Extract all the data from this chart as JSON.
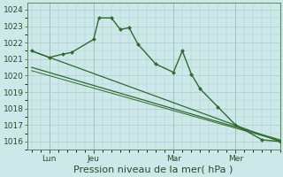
{
  "background_color": "#cce8e8",
  "grid_color": "#aacccc",
  "line_color": "#2d6b2d",
  "marker_color": "#2d6b2d",
  "xlabel": "Pression niveau de la mer( hPa )",
  "xlabel_fontsize": 8,
  "ylabel_fontsize": 6.5,
  "tick_fontsize": 6.5,
  "ylim": [
    1015.5,
    1024.4
  ],
  "yticks": [
    1016,
    1017,
    1018,
    1019,
    1020,
    1021,
    1022,
    1023,
    1024
  ],
  "x_tick_labels": [
    "Lun",
    "Jeu",
    "Mar",
    "Mer"
  ],
  "x_tick_positions": [
    2,
    7,
    16,
    23
  ],
  "x_vlines": [
    2,
    7,
    16,
    23
  ],
  "xlim": [
    -0.5,
    28
  ],
  "series": [
    {
      "x": [
        0,
        2,
        3.5,
        4.5,
        7,
        7.6,
        9,
        10,
        11,
        12,
        14,
        16,
        17,
        18,
        19,
        21,
        23,
        26,
        28
      ],
      "y": [
        1021.5,
        1021.1,
        1021.3,
        1021.4,
        1022.2,
        1023.5,
        1023.5,
        1022.8,
        1022.9,
        1021.9,
        1020.7,
        1020.2,
        1021.5,
        1020.1,
        1019.2,
        1018.1,
        1017.0,
        1016.1,
        1016.0
      ],
      "marker": "D",
      "markersize": 2.0,
      "linewidth": 1.0,
      "has_marker": true
    },
    {
      "x": [
        0,
        28
      ],
      "y": [
        1021.5,
        1016.0
      ],
      "marker": null,
      "markersize": 0,
      "linewidth": 0.9,
      "has_marker": false
    },
    {
      "x": [
        0,
        28
      ],
      "y": [
        1020.5,
        1016.1
      ],
      "marker": null,
      "markersize": 0,
      "linewidth": 0.9,
      "has_marker": false
    },
    {
      "x": [
        0,
        28
      ],
      "y": [
        1020.3,
        1016.05
      ],
      "marker": null,
      "markersize": 0,
      "linewidth": 0.7,
      "has_marker": false
    }
  ]
}
